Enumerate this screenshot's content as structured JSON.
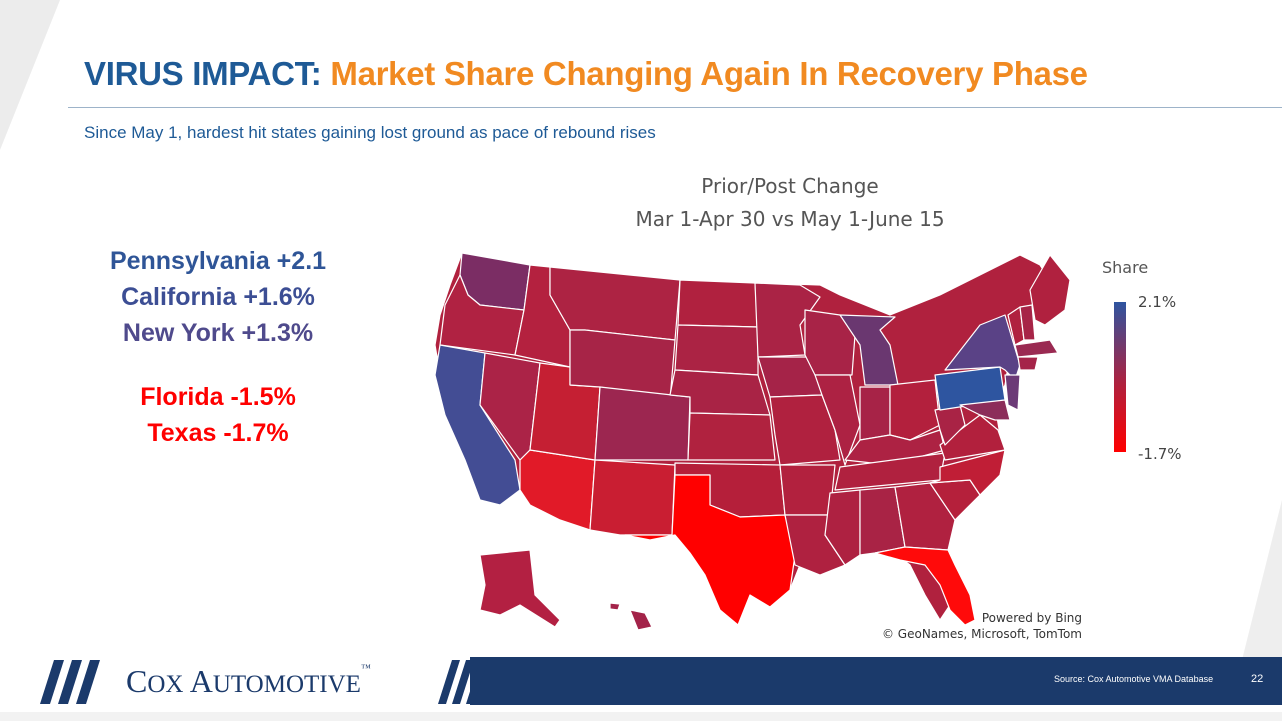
{
  "slide": {
    "title_part1": "VIRUS IMPACT:",
    "title_part2": "Market Share Changing Again In Recovery Phase",
    "subtitle": "Since May 1, hardest hit states gaining lost ground as pace of rebound rises",
    "highlights": [
      {
        "text": "Pennsylvania +2.1",
        "color": "#2f5597"
      },
      {
        "text": "California +1.6%",
        "color": "#3c4e94"
      },
      {
        "text": "New York +1.3%",
        "color": "#4f4a8c"
      },
      {
        "text": "Florida -1.5%",
        "color": "#ff0000"
      },
      {
        "text": "Texas -1.7%",
        "color": "#ff0000"
      }
    ],
    "page_number": "22",
    "source": "Source: Cox Automotive VMA Database"
  },
  "map": {
    "title_line1": "Prior/Post Change",
    "title_line2": "Mar 1-Apr 30 vs May 1-June 15",
    "legend_title": "Share",
    "legend_max": "2.1%",
    "legend_min": "-1.7%",
    "credit_line1": "Powered by Bing",
    "credit_line2": "© GeoNames, Microsoft, TomTom",
    "colors": {
      "high": "#2e55a0",
      "mid": "#b0213e",
      "low": "#ff0000",
      "border": "#ffffff"
    },
    "highlighted_states": [
      {
        "state": "Pennsylvania",
        "value": 2.1
      },
      {
        "state": "California",
        "value": 1.6
      },
      {
        "state": "New York",
        "value": 1.3
      },
      {
        "state": "Florida",
        "value": -1.5
      },
      {
        "state": "Texas",
        "value": -1.7
      }
    ]
  },
  "footer": {
    "logo_word1": "C",
    "logo_word2": "OX ",
    "logo_word3": "A",
    "logo_word4": "UTOMOTIVE",
    "logo_tm": "™"
  }
}
